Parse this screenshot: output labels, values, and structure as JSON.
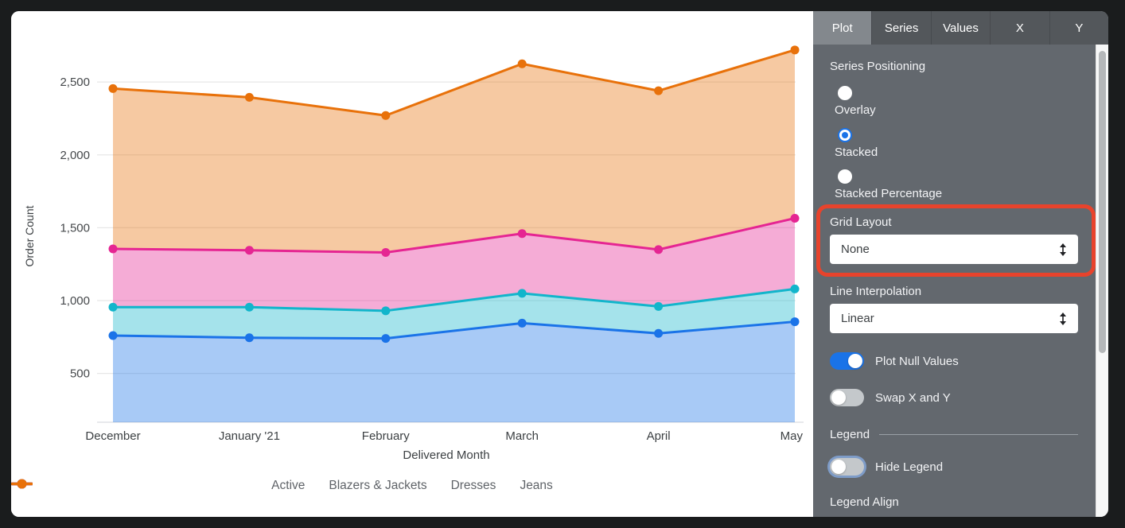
{
  "panel": {
    "tabs": [
      {
        "label": "Plot",
        "active": true
      },
      {
        "label": "Series",
        "active": false
      },
      {
        "label": "Values",
        "active": false
      },
      {
        "label": "X",
        "active": false
      },
      {
        "label": "Y",
        "active": false
      }
    ],
    "series_positioning": {
      "label": "Series Positioning",
      "options": [
        {
          "label": "Overlay",
          "selected": false
        },
        {
          "label": "Stacked",
          "selected": true
        },
        {
          "label": "Stacked Percentage",
          "selected": false
        }
      ]
    },
    "grid_layout": {
      "label": "Grid Layout",
      "value": "None",
      "highlighted": true
    },
    "line_interpolation": {
      "label": "Line Interpolation",
      "value": "Linear"
    },
    "toggles": [
      {
        "label": "Plot Null Values",
        "on": true
      },
      {
        "label": "Swap X and Y",
        "on": false
      }
    ],
    "legend_section": {
      "title": "Legend",
      "hide_legend": {
        "label": "Hide Legend",
        "on": false
      },
      "legend_align_label": "Legend Align"
    },
    "highlight_color": "#E8432C",
    "accent_color": "#1A73E8"
  },
  "chart_data": {
    "type": "area",
    "stacking": "stacked",
    "title": "",
    "xlabel": "Delivered Month",
    "ylabel": "Order Count",
    "x": [
      "December",
      "January '21",
      "February",
      "March",
      "April",
      "May"
    ],
    "yticks": [
      500,
      1000,
      1500,
      2000,
      2500
    ],
    "ytick_labels": [
      "500",
      "1,000",
      "1,500",
      "2,000",
      "2,500"
    ],
    "ylim": [
      165,
      2850
    ],
    "grid": true,
    "legend_position": "bottom",
    "series": [
      {
        "name": "Active",
        "color": "#1A73E8",
        "values": [
          760,
          745,
          740,
          845,
          775,
          855
        ]
      },
      {
        "name": "Blazers & Jackets",
        "color": "#12B5CB",
        "values": [
          195,
          210,
          190,
          205,
          185,
          225
        ]
      },
      {
        "name": "Dresses",
        "color": "#E52592",
        "values": [
          400,
          390,
          400,
          410,
          390,
          485
        ]
      },
      {
        "name": "Jeans",
        "color": "#E8710A",
        "values": [
          1100,
          1050,
          940,
          1165,
          1090,
          1155
        ]
      }
    ],
    "stacked_totals": [
      2455,
      2395,
      2270,
      2625,
      2440,
      2720
    ]
  }
}
